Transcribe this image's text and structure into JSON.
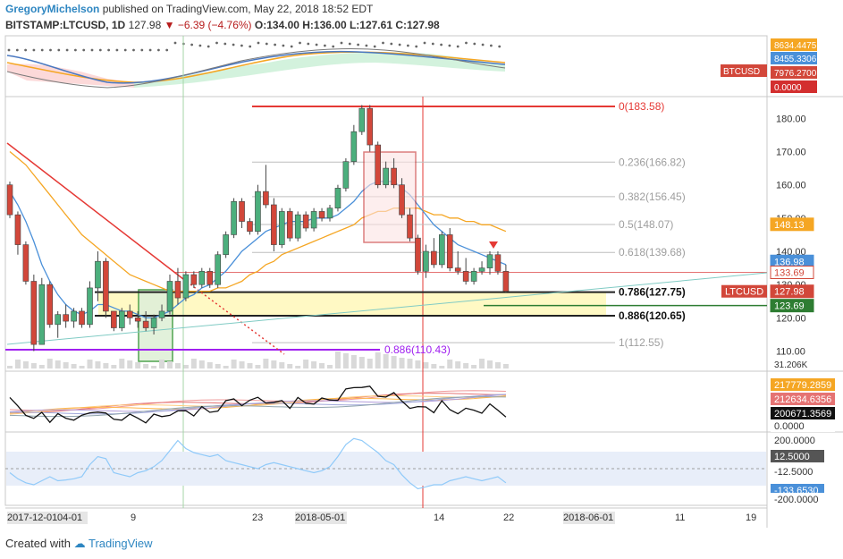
{
  "header": {
    "author": "GregoryMichelson",
    "published": "published on TradingView.com, May 22, 2018 18:52 EDT",
    "symbol": "BITSTAMP:LTCUSD, 1D",
    "price": "127.98",
    "change": "▼ −6.39 (−4.76%)",
    "ohlc": "O:134.00 H:136.00 L:127.61 C:127.98"
  },
  "footer": {
    "created_with": "Created with",
    "brand": "TradingView"
  },
  "colors": {
    "up": "#4caf7d",
    "down": "#d2473a",
    "fib_red": "#e53935",
    "fib_gray": "#bdbdbd",
    "sma_blue": "#4a90d9",
    "sma_orange": "#f5a623",
    "zone_yellow": "#fff9c4",
    "purple": "#a020f0",
    "green": "#2e7d32"
  },
  "chart_data": {
    "type": "candlestick",
    "x_axis": {
      "labels": [
        "2017-12-01",
        "04-01",
        "9",
        "23",
        "2018-05-01",
        "14",
        "22",
        "2018-06-01",
        "11",
        "19"
      ]
    },
    "y_axis": {
      "range": [
        108,
        186
      ],
      "ticks": [
        110.0,
        120.0,
        130.0,
        140.0,
        150.0,
        160.0,
        170.0,
        180.0
      ]
    },
    "candles": [
      {
        "o": 160,
        "h": 161,
        "l": 150,
        "c": 151
      },
      {
        "o": 151,
        "h": 152,
        "l": 139,
        "c": 142
      },
      {
        "o": 142,
        "h": 143,
        "l": 130,
        "c": 131
      },
      {
        "o": 131,
        "h": 133,
        "l": 110,
        "c": 112
      },
      {
        "o": 112,
        "h": 132,
        "l": 112,
        "c": 130
      },
      {
        "o": 130,
        "h": 131,
        "l": 117,
        "c": 118
      },
      {
        "o": 118,
        "h": 122,
        "l": 114,
        "c": 121
      },
      {
        "o": 121,
        "h": 124,
        "l": 117,
        "c": 119
      },
      {
        "o": 119,
        "h": 123,
        "l": 117,
        "c": 122
      },
      {
        "o": 122,
        "h": 123,
        "l": 117,
        "c": 118
      },
      {
        "o": 118,
        "h": 131,
        "l": 117,
        "c": 129
      },
      {
        "o": 129,
        "h": 140,
        "l": 125,
        "c": 137
      },
      {
        "o": 137,
        "h": 138,
        "l": 120,
        "c": 122
      },
      {
        "o": 122,
        "h": 122,
        "l": 116,
        "c": 117
      },
      {
        "o": 117,
        "h": 123,
        "l": 116,
        "c": 122
      },
      {
        "o": 122,
        "h": 124,
        "l": 118,
        "c": 120
      },
      {
        "o": 120,
        "h": 122,
        "l": 117,
        "c": 119
      },
      {
        "o": 119,
        "h": 122,
        "l": 116,
        "c": 117
      },
      {
        "o": 117,
        "h": 121,
        "l": 115,
        "c": 120
      },
      {
        "o": 120,
        "h": 124,
        "l": 119,
        "c": 122
      },
      {
        "o": 122,
        "h": 133,
        "l": 121,
        "c": 131
      },
      {
        "o": 131,
        "h": 135,
        "l": 124,
        "c": 126
      },
      {
        "o": 126,
        "h": 134,
        "l": 125,
        "c": 133
      },
      {
        "o": 133,
        "h": 134,
        "l": 129,
        "c": 130
      },
      {
        "o": 130,
        "h": 135,
        "l": 129,
        "c": 134
      },
      {
        "o": 134,
        "h": 135,
        "l": 129,
        "c": 130
      },
      {
        "o": 130,
        "h": 140,
        "l": 129,
        "c": 139
      },
      {
        "o": 139,
        "h": 146,
        "l": 138,
        "c": 145
      },
      {
        "o": 145,
        "h": 156,
        "l": 144,
        "c": 155
      },
      {
        "o": 155,
        "h": 156,
        "l": 147,
        "c": 149
      },
      {
        "o": 149,
        "h": 150,
        "l": 145,
        "c": 146
      },
      {
        "o": 146,
        "h": 160,
        "l": 145,
        "c": 158
      },
      {
        "o": 158,
        "h": 166,
        "l": 153,
        "c": 154
      },
      {
        "o": 154,
        "h": 156,
        "l": 140,
        "c": 142
      },
      {
        "o": 142,
        "h": 153,
        "l": 141,
        "c": 152
      },
      {
        "o": 152,
        "h": 153,
        "l": 143,
        "c": 144
      },
      {
        "o": 144,
        "h": 152,
        "l": 143,
        "c": 151
      },
      {
        "o": 151,
        "h": 152,
        "l": 146,
        "c": 147
      },
      {
        "o": 147,
        "h": 153,
        "l": 146,
        "c": 152
      },
      {
        "o": 152,
        "h": 153,
        "l": 149,
        "c": 150
      },
      {
        "o": 150,
        "h": 154,
        "l": 149,
        "c": 153
      },
      {
        "o": 153,
        "h": 160,
        "l": 152,
        "c": 159
      },
      {
        "o": 159,
        "h": 168,
        "l": 158,
        "c": 167
      },
      {
        "o": 167,
        "h": 178,
        "l": 166,
        "c": 176
      },
      {
        "o": 176,
        "h": 184,
        "l": 175,
        "c": 183
      },
      {
        "o": 183,
        "h": 184,
        "l": 170,
        "c": 172
      },
      {
        "o": 172,
        "h": 173,
        "l": 159,
        "c": 160
      },
      {
        "o": 160,
        "h": 167,
        "l": 159,
        "c": 165
      },
      {
        "o": 165,
        "h": 168,
        "l": 159,
        "c": 160
      },
      {
        "o": 160,
        "h": 162,
        "l": 150,
        "c": 151
      },
      {
        "o": 151,
        "h": 153,
        "l": 143,
        "c": 144
      },
      {
        "o": 144,
        "h": 145,
        "l": 133,
        "c": 134
      },
      {
        "o": 134,
        "h": 142,
        "l": 132,
        "c": 140
      },
      {
        "o": 140,
        "h": 144,
        "l": 135,
        "c": 136
      },
      {
        "o": 136,
        "h": 146,
        "l": 135,
        "c": 145
      },
      {
        "o": 145,
        "h": 147,
        "l": 134,
        "c": 135
      },
      {
        "o": 135,
        "h": 140,
        "l": 133,
        "c": 134
      },
      {
        "o": 134,
        "h": 138,
        "l": 130,
        "c": 131
      },
      {
        "o": 131,
        "h": 135,
        "l": 130,
        "c": 134
      },
      {
        "o": 134,
        "h": 137,
        "l": 133,
        "c": 135
      },
      {
        "o": 135,
        "h": 140,
        "l": 133,
        "c": 139
      },
      {
        "o": 139,
        "h": 140,
        "l": 133,
        "c": 134
      },
      {
        "o": 134,
        "h": 136,
        "l": 127.61,
        "c": 127.98
      }
    ],
    "sma_fast": [
      158,
      154,
      149,
      143,
      136,
      131,
      127,
      124,
      122,
      121,
      122,
      124,
      124,
      123,
      122,
      122,
      121,
      120,
      120,
      121,
      122,
      124,
      126,
      127,
      129,
      130,
      132,
      134,
      137,
      140,
      142,
      144,
      146,
      147,
      148,
      149,
      149,
      149,
      150,
      150,
      150,
      151,
      153,
      155,
      158,
      160,
      161,
      161,
      161,
      159,
      157,
      154,
      151,
      148,
      146,
      144,
      142,
      141,
      140,
      139,
      138,
      137,
      136
    ],
    "sma_slow": [
      170,
      168,
      166,
      163,
      160,
      157,
      154,
      151,
      148,
      145,
      143,
      141,
      139,
      137,
      135,
      133,
      132,
      131,
      130,
      129,
      128,
      128,
      128,
      128,
      128,
      128,
      129,
      129,
      130,
      131,
      133,
      134,
      136,
      137,
      139,
      140,
      141,
      142,
      143,
      144,
      145,
      146,
      147,
      148,
      150,
      151,
      152,
      152,
      153,
      153,
      153,
      153,
      152,
      151,
      151,
      150,
      150,
      149,
      149,
      148,
      148,
      147,
      146
    ],
    "fib_levels": [
      {
        "label": "0(183.58)",
        "v": 183.58
      },
      {
        "label": "0.236(166.82)",
        "v": 166.82
      },
      {
        "label": "0.382(156.45)",
        "v": 156.45
      },
      {
        "label": "0.5(148.07)",
        "v": 148.07
      },
      {
        "label": "0.618(139.68)",
        "v": 139.68
      },
      {
        "label": "0.786(127.75)",
        "v": 127.75
      },
      {
        "label": "0.886(120.65)",
        "v": 120.65
      },
      {
        "label": "1(112.55)",
        "v": 112.55
      }
    ],
    "purple_line": {
      "label": "0.886(110.43)",
      "v": 110.43
    },
    "right_badges": [
      {
        "text": "148.13",
        "v": 148.13,
        "color": "#f5a623"
      },
      {
        "text": "136.98",
        "v": 136.98,
        "color": "#4a90d9"
      },
      {
        "text": "133.69",
        "v": 133.69,
        "color": "#ffffff",
        "text_color": "#d2473a"
      },
      {
        "text": "127.98",
        "v": 127.98,
        "color": "#d2473a"
      },
      {
        "text": "123.69",
        "v": 123.69,
        "color": "#2e7d32"
      }
    ],
    "ltc_tag": "LTCUSD",
    "volume_label": "31.206K",
    "btc_panel": {
      "label": "BTCUSD",
      "badges": [
        "8634.4475",
        "8455.3306",
        "7976.2700",
        "0.0000"
      ]
    },
    "osc_panel": {
      "badges": [
        "217779.2859",
        "212634.6356",
        "200671.3569",
        "0.0000"
      ]
    },
    "cci_panel": {
      "badges": [
        "200.0000",
        "12.5000",
        "-12.5000",
        "-133.6530",
        "-200.0000"
      ]
    }
  }
}
